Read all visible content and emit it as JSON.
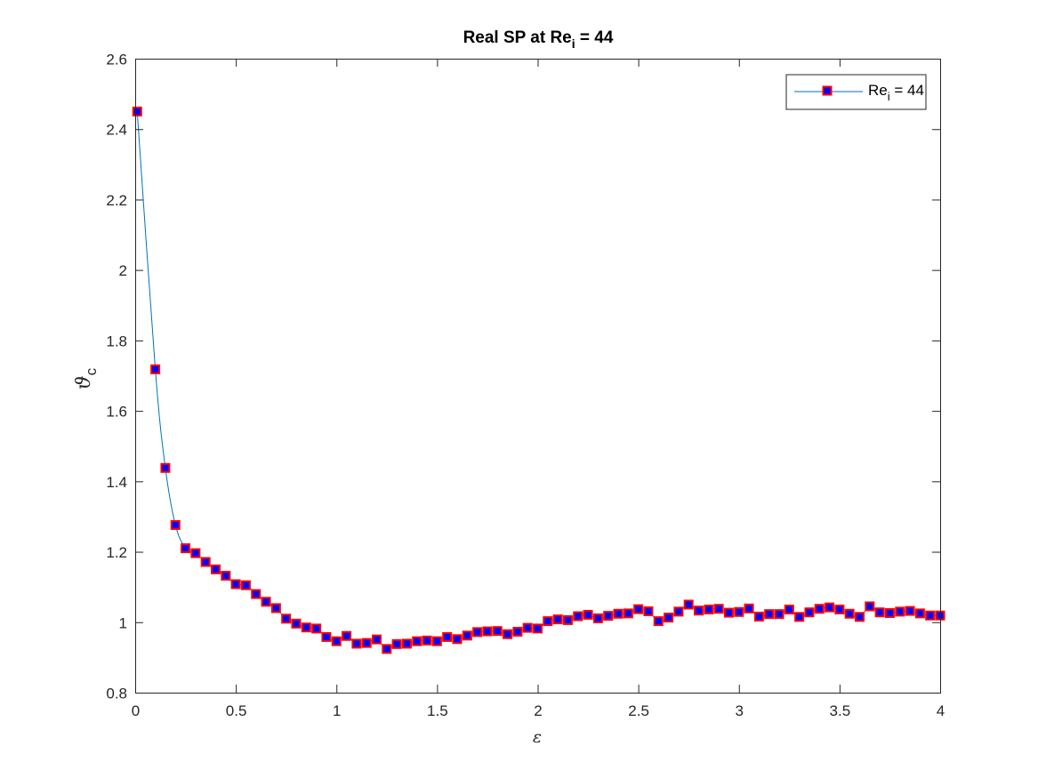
{
  "chart_data": {
    "type": "line",
    "title": "Real SP at Re",
    "title_subscript": "i",
    "title_suffix": " = 44",
    "xlabel": "ε",
    "ylabel": "ϑ",
    "ylabel_subscript": "c",
    "xlim": [
      0,
      4
    ],
    "ylim": [
      0.8,
      2.6
    ],
    "xticks": [
      0,
      0.5,
      1,
      1.5,
      2,
      2.5,
      3,
      3.5,
      4
    ],
    "xtick_labels": [
      "0",
      "0.5",
      "1",
      "1.5",
      "2",
      "2.5",
      "3",
      "3.5",
      "4"
    ],
    "yticks": [
      0.8,
      1,
      1.2,
      1.4,
      1.6,
      1.8,
      2,
      2.2,
      2.4,
      2.6
    ],
    "ytick_labels": [
      "0.8",
      "1",
      "1.2",
      "1.4",
      "1.6",
      "1.8",
      "2",
      "2.2",
      "2.4",
      "2.6"
    ],
    "grid": false,
    "box": true,
    "legend_position": "top-right",
    "series": [
      {
        "name": "Re",
        "name_subscript": "i",
        "name_suffix": " = 44",
        "line_color": "#0072BD",
        "marker": "square",
        "marker_face_color": "#0000FF",
        "marker_edge_color": "#FF0000",
        "x": [
          0.01,
          0.1,
          0.15,
          0.2,
          0.25,
          0.3,
          0.35,
          0.4,
          0.45,
          0.5,
          0.55,
          0.6,
          0.65,
          0.7,
          0.75,
          0.8,
          0.85,
          0.9,
          0.95,
          1.0,
          1.05,
          1.1,
          1.15,
          1.2,
          1.25,
          1.3,
          1.35,
          1.4,
          1.45,
          1.5,
          1.55,
          1.6,
          1.65,
          1.7,
          1.75,
          1.8,
          1.85,
          1.9,
          1.95,
          2.0,
          2.05,
          2.1,
          2.15,
          2.2,
          2.25,
          2.3,
          2.35,
          2.4,
          2.45,
          2.5,
          2.55,
          2.6,
          2.65,
          2.7,
          2.75,
          2.8,
          2.85,
          2.9,
          2.95,
          3.0,
          3.05,
          3.1,
          3.15,
          3.2,
          3.25,
          3.3,
          3.35,
          3.4,
          3.45,
          3.5,
          3.55,
          3.6,
          3.65,
          3.7,
          3.75,
          3.8,
          3.85,
          3.9,
          3.95,
          4.0
        ],
        "y": [
          2.45,
          1.718,
          1.438,
          1.276,
          1.21,
          1.196,
          1.171,
          1.15,
          1.132,
          1.108,
          1.105,
          1.08,
          1.058,
          1.04,
          1.01,
          0.996,
          0.985,
          0.982,
          0.958,
          0.946,
          0.961,
          0.939,
          0.941,
          0.951,
          0.924,
          0.938,
          0.939,
          0.946,
          0.948,
          0.946,
          0.958,
          0.952,
          0.962,
          0.972,
          0.974,
          0.975,
          0.966,
          0.973,
          0.984,
          0.982,
          1.003,
          1.008,
          1.006,
          1.017,
          1.021,
          1.011,
          1.018,
          1.024,
          1.025,
          1.037,
          1.031,
          1.003,
          1.013,
          1.03,
          1.05,
          1.033,
          1.036,
          1.038,
          1.027,
          1.029,
          1.039,
          1.016,
          1.023,
          1.023,
          1.036,
          1.015,
          1.028,
          1.038,
          1.042,
          1.036,
          1.024,
          1.015,
          1.045,
          1.028,
          1.026,
          1.03,
          1.032,
          1.025,
          1.019,
          1.019
        ]
      }
    ]
  }
}
